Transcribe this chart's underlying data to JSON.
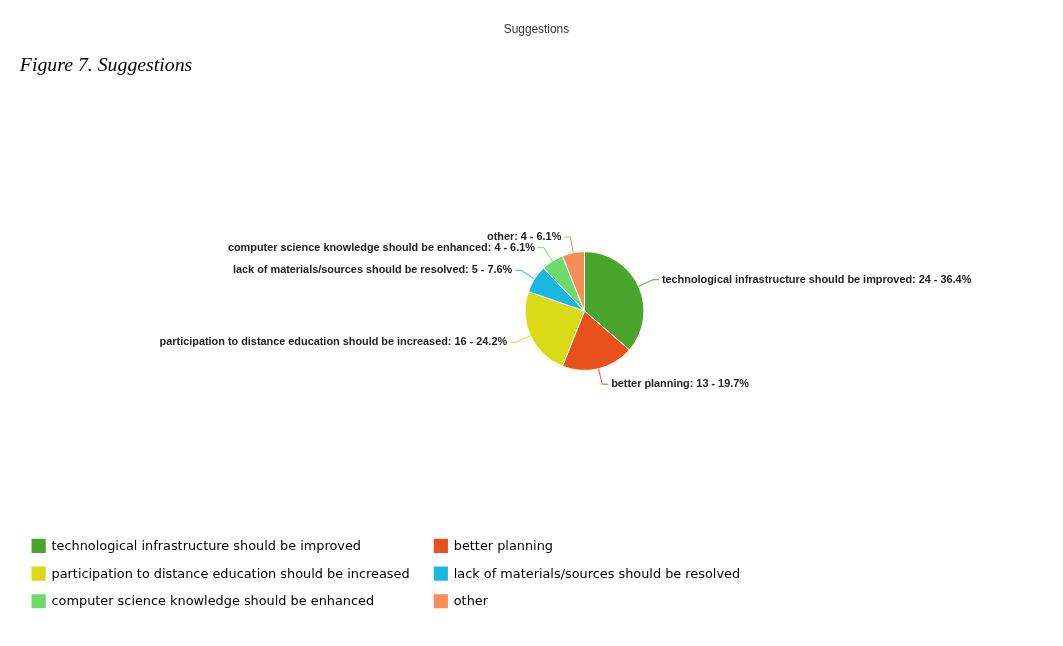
{
  "chart_data": {
    "type": "pie",
    "title": "Suggestions",
    "categories": [
      "technological infrastructure should be improved",
      "better planning",
      "participation to distance education should be increased",
      "lack of materials/sources should be resolved",
      "computer science knowledge should be enhanced",
      "other"
    ],
    "values": [
      24,
      13,
      16,
      5,
      4,
      4
    ],
    "colors": [
      "#4aa52e",
      "#e8501c",
      "#d9d916",
      "#1ab8e0",
      "#6fd96a",
      "#f58e5a"
    ],
    "value_labels": [
      "technological infrastructure should be improved: 24 - 36.4%",
      "better planning: 13 - 19.7%",
      "participation to distance education should be increased: 16 - 24.2%",
      "lack of materials/sources should be resolved: 5 - 7.6%",
      "computer science knowledge should be enhanced: 4 - 6.1%",
      "other: 4 - 6.1%"
    ],
    "legend": "bottom",
    "annotations": [
      "Figure 7. Suggestions"
    ]
  }
}
